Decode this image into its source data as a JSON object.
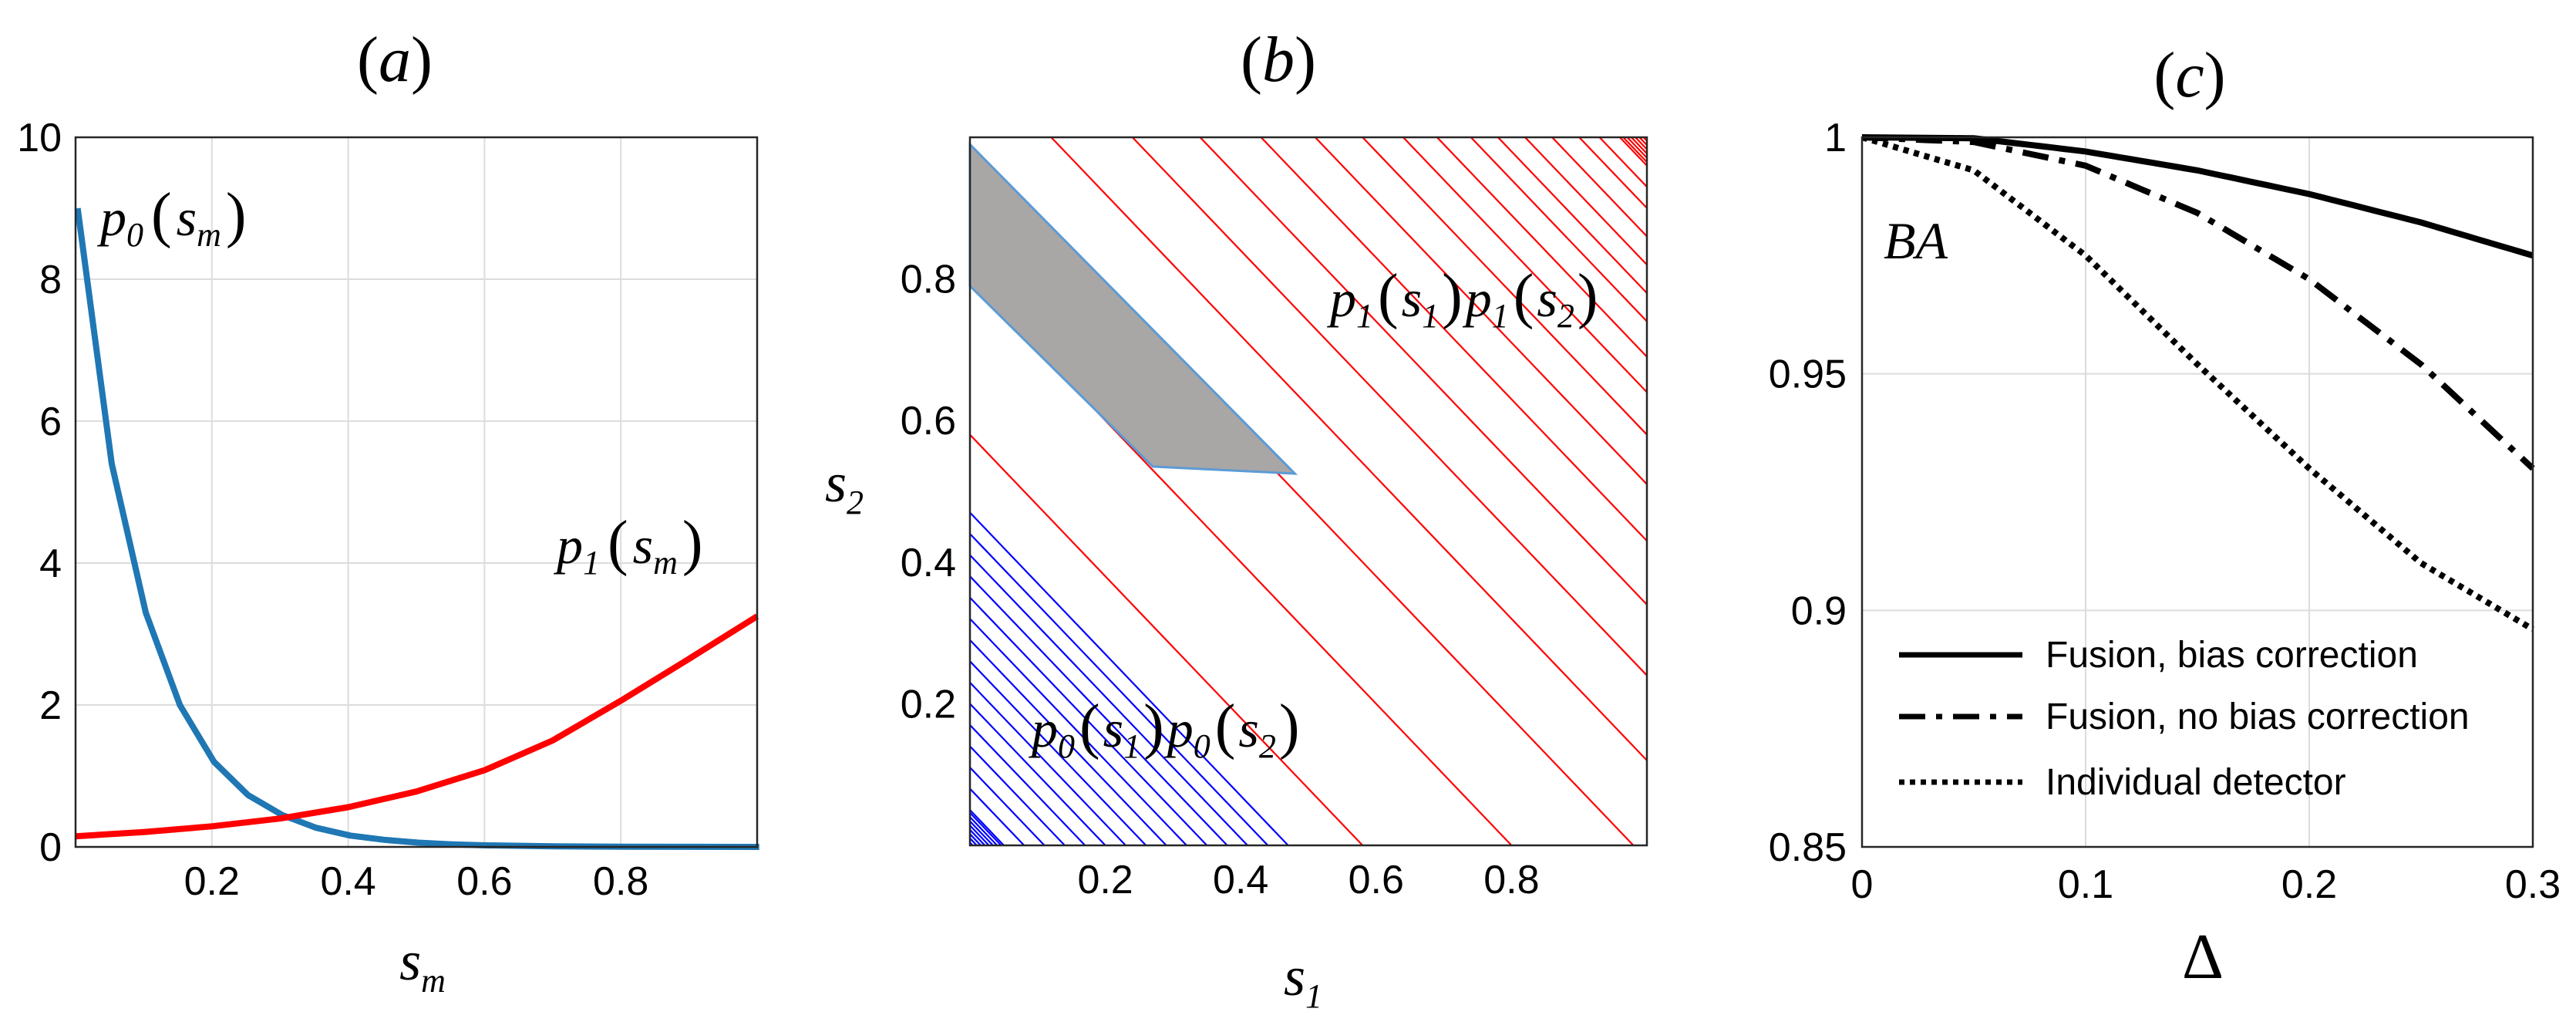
{
  "chart_data": [
    {
      "panel": "(a)",
      "type": "line",
      "xlabel": "s_m",
      "xlim": [
        0,
        1
      ],
      "ylim": [
        0,
        10
      ],
      "xticks": [
        "0.2",
        "0.4",
        "0.6",
        "0.8"
      ],
      "yticks": [
        "0",
        "2",
        "4",
        "6",
        "8",
        "10"
      ],
      "grid": true,
      "series": [
        {
          "name": "p0(sm)",
          "color": "#1f77b4",
          "x": [
            0.0,
            0.05,
            0.1,
            0.15,
            0.2,
            0.25,
            0.3,
            0.35,
            0.4,
            0.45,
            0.5,
            0.55,
            0.6,
            0.7,
            0.8,
            0.9,
            1.0
          ],
          "y": [
            9.0,
            5.4,
            3.3,
            2.0,
            1.2,
            0.73,
            0.45,
            0.27,
            0.16,
            0.1,
            0.06,
            0.036,
            0.022,
            0.008,
            0.003,
            0.001,
            0.0
          ]
        },
        {
          "name": "p1(sm)",
          "color": "#ff0000",
          "x": [
            0.0,
            0.1,
            0.2,
            0.3,
            0.4,
            0.5,
            0.6,
            0.7,
            0.8,
            0.9,
            1.0
          ],
          "y": [
            0.15,
            0.21,
            0.29,
            0.4,
            0.56,
            0.78,
            1.08,
            1.5,
            2.06,
            2.65,
            3.25
          ]
        }
      ],
      "annotations": [
        {
          "text_main": "p",
          "sub": "0",
          "arg": "s",
          "arg_sub": "m"
        },
        {
          "text_main": "p",
          "sub": "1",
          "arg": "s",
          "arg_sub": "m"
        }
      ]
    },
    {
      "panel": "(b)",
      "type": "contour",
      "xlabel": "s_1",
      "ylabel": "s_2",
      "xlim": [
        0,
        1
      ],
      "ylim": [
        0,
        1
      ],
      "xticks": [
        "0.2",
        "0.4",
        "0.6",
        "0.8"
      ],
      "yticks": [
        "0.2",
        "0.4",
        "0.6",
        "0.8"
      ],
      "blue_contours_sum": [
        0.05,
        0.08,
        0.11,
        0.14,
        0.17,
        0.2,
        0.23,
        0.26,
        0.29,
        0.32,
        0.35,
        0.38,
        0.41,
        0.44,
        0.47
      ],
      "red_contours_sum": [
        0.58,
        0.8,
        0.98,
        1.12,
        1.24,
        1.34,
        1.43,
        1.51,
        1.58,
        1.64,
        1.69,
        1.74,
        1.78,
        1.82,
        1.86,
        1.9,
        1.93,
        1.96
      ],
      "gray_region": [
        [
          0.0,
          0.99
        ],
        [
          0.0,
          0.79
        ],
        [
          0.27,
          0.535
        ],
        [
          0.48,
          0.525
        ]
      ],
      "colors": {
        "blue": "#0000ff",
        "red": "#ff0000",
        "region": "#a9a6a6",
        "region_edge": "#5b9bd5"
      },
      "annotations": [
        {
          "id": "red",
          "parts": [
            [
              "p",
              "1",
              "s",
              "1"
            ],
            [
              "p",
              "1",
              "s",
              "2"
            ]
          ]
        },
        {
          "id": "blue",
          "parts": [
            [
              "p",
              "0",
              "s",
              "1"
            ],
            [
              "p",
              "0",
              "s",
              "2"
            ]
          ]
        }
      ]
    },
    {
      "panel": "(c)",
      "type": "line",
      "xlabel": "Δ",
      "xlim": [
        0,
        0.3
      ],
      "ylim": [
        0.85,
        1.0
      ],
      "xticks": [
        "0",
        "0.1",
        "0.2",
        "0.3"
      ],
      "yticks": [
        "0.85",
        "0.9",
        "0.95",
        "1"
      ],
      "grid": true,
      "series": [
        {
          "name": "Fusion,  bias correction",
          "dash": "solid",
          "x": [
            0,
            0.05,
            0.1,
            0.15,
            0.2,
            0.25,
            0.3
          ],
          "y": [
            1.0,
            0.9998,
            0.997,
            0.993,
            0.988,
            0.982,
            0.975
          ]
        },
        {
          "name": "Fusion, no bias correction",
          "dash": "dashdot",
          "x": [
            0,
            0.05,
            0.1,
            0.15,
            0.2,
            0.25,
            0.3
          ],
          "y": [
            1.0,
            0.999,
            0.994,
            0.984,
            0.97,
            0.952,
            0.93
          ]
        },
        {
          "name": "Individual detector",
          "dash": "dotted",
          "x": [
            0,
            0.05,
            0.1,
            0.15,
            0.2,
            0.25,
            0.3
          ],
          "y": [
            1.0,
            0.993,
            0.975,
            0.952,
            0.93,
            0.91,
            0.896
          ]
        }
      ],
      "annotation": "BA",
      "legend_position": "bottom-right"
    }
  ],
  "labels": {
    "title_a": "a",
    "title_b": "b",
    "title_c": "c",
    "a_xlabel_main": "s",
    "a_xlabel_sub": "m",
    "b_xlabel_main": "s",
    "b_xlabel_sub": "1",
    "b_ylabel_main": "s",
    "b_ylabel_sub": "2",
    "c_xlabel": "Δ",
    "c_annotation": "BA"
  }
}
